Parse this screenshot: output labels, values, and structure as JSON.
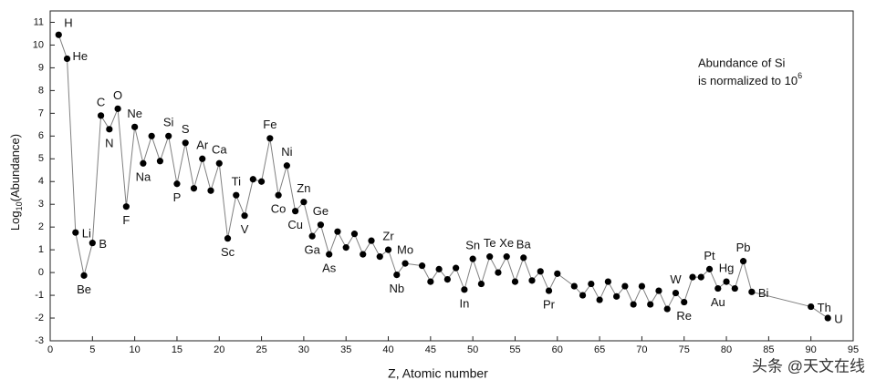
{
  "chart_data": {
    "type": "line",
    "ylabel_parts": [
      "Log",
      "10",
      "(Abundance)"
    ],
    "xlabel": "Z, Atomic number",
    "annotation": [
      "Abundance of Si",
      "is normalized to 10",
      "6"
    ],
    "watermark": "头条 @天文在线",
    "xlim": [
      0,
      95
    ],
    "ylim": [
      -3,
      11.5
    ],
    "xticks": [
      0,
      5,
      10,
      15,
      20,
      25,
      30,
      35,
      40,
      45,
      50,
      55,
      60,
      65,
      70,
      75,
      80,
      85,
      90,
      95
    ],
    "yticks": [
      -3,
      -2,
      -1,
      0,
      1,
      2,
      3,
      4,
      5,
      6,
      7,
      8,
      9,
      10,
      11
    ],
    "line_color": "#808080",
    "marker_color": "#000000",
    "x": [
      1,
      2,
      3,
      4,
      5,
      6,
      7,
      8,
      9,
      10,
      11,
      12,
      13,
      14,
      15,
      16,
      17,
      18,
      19,
      20,
      21,
      22,
      23,
      24,
      25,
      26,
      27,
      28,
      29,
      30,
      31,
      32,
      33,
      34,
      35,
      36,
      37,
      38,
      39,
      40,
      41,
      42,
      44,
      45,
      46,
      47,
      48,
      49,
      50,
      51,
      52,
      53,
      54,
      55,
      56,
      57,
      58,
      59,
      60,
      62,
      63,
      64,
      65,
      66,
      67,
      68,
      69,
      70,
      71,
      72,
      73,
      74,
      75,
      76,
      77,
      78,
      79,
      80,
      81,
      82,
      83,
      90,
      92
    ],
    "values": [
      10.45,
      9.4,
      1.76,
      -0.13,
      1.3,
      6.9,
      6.3,
      7.2,
      2.9,
      6.4,
      4.8,
      6.0,
      4.9,
      6.0,
      3.9,
      5.7,
      3.7,
      5.0,
      3.6,
      4.8,
      1.5,
      3.4,
      2.5,
      4.1,
      4.0,
      5.9,
      3.4,
      4.7,
      2.7,
      3.1,
      1.6,
      2.1,
      0.8,
      1.8,
      1.1,
      1.7,
      0.8,
      1.4,
      0.7,
      1.0,
      -0.1,
      0.4,
      0.3,
      -0.4,
      0.15,
      -0.3,
      0.2,
      -0.75,
      0.6,
      -0.5,
      0.7,
      0.0,
      0.7,
      -0.4,
      0.65,
      -0.35,
      0.05,
      -0.8,
      -0.05,
      -0.6,
      -1.0,
      -0.5,
      -1.2,
      -0.4,
      -1.05,
      -0.6,
      -1.4,
      -0.6,
      -1.4,
      -0.8,
      -1.6,
      -0.9,
      -1.3,
      -0.2,
      -0.2,
      0.15,
      -0.7,
      -0.4,
      -0.7,
      0.5,
      -0.85,
      -1.5,
      -2.0
    ],
    "point_labels": [
      "H",
      "He",
      "Li",
      "Be",
      "B",
      "C",
      "N",
      "O",
      "F",
      "Ne",
      "Na",
      null,
      null,
      "Si",
      "P",
      "S",
      null,
      "Ar",
      null,
      "Ca",
      "Sc",
      "Ti",
      "V",
      null,
      null,
      "Fe",
      "Co",
      "Ni",
      "Cu",
      "Zn",
      "Ga",
      "Ge",
      "As",
      null,
      null,
      null,
      null,
      null,
      null,
      "Zr",
      "Nb",
      "Mo",
      null,
      null,
      null,
      null,
      null,
      "In",
      "Sn",
      null,
      "Te",
      null,
      "Xe",
      null,
      "Ba",
      null,
      null,
      "Pr",
      null,
      null,
      null,
      null,
      null,
      null,
      null,
      null,
      null,
      null,
      null,
      null,
      null,
      "W",
      "Re",
      null,
      null,
      "Pt",
      "Au",
      "Hg",
      null,
      "Pb",
      "Bi",
      "Th",
      "U"
    ]
  }
}
